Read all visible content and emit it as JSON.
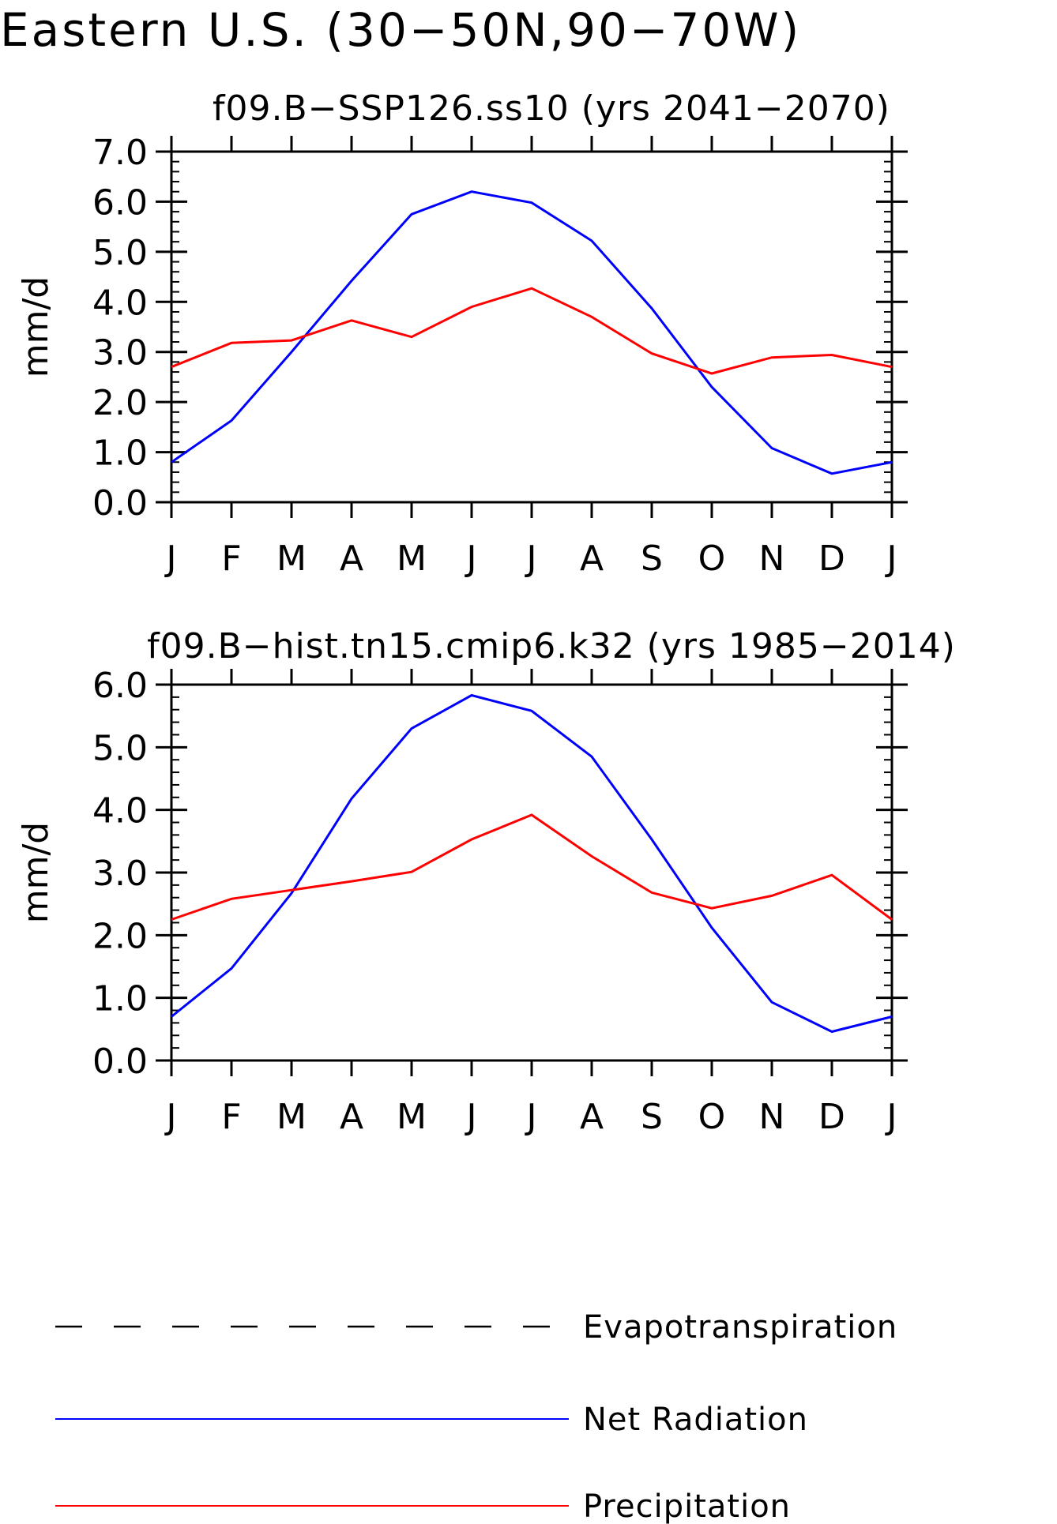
{
  "title": "Eastern U.S. (30−50N,90−70W)",
  "chart_data": [
    {
      "type": "line",
      "title": "f09.B−SSP126.ss10 (yrs 2041−2070)",
      "ylabel": "mm/d",
      "xlabel": "",
      "categories": [
        "J",
        "F",
        "M",
        "A",
        "M",
        "J",
        "J",
        "A",
        "S",
        "O",
        "N",
        "D",
        "J"
      ],
      "ylim": [
        0,
        7
      ],
      "yticks": [
        "0.0",
        "1.0",
        "2.0",
        "3.0",
        "4.0",
        "5.0",
        "6.0",
        "7.0"
      ],
      "series": [
        {
          "name": "Net Radiation",
          "color": "#0000ff",
          "values": [
            0.8,
            1.63,
            3.0,
            4.42,
            5.75,
            6.2,
            5.98,
            5.22,
            3.87,
            2.3,
            1.08,
            0.57,
            0.8
          ]
        },
        {
          "name": "Precipitation",
          "color": "#ff0000",
          "values": [
            2.7,
            3.18,
            3.23,
            3.63,
            3.3,
            3.9,
            4.27,
            3.7,
            2.97,
            2.57,
            2.89,
            2.94,
            2.7
          ]
        }
      ]
    },
    {
      "type": "line",
      "title": "f09.B−hist.tn15.cmip6.k32 (yrs 1985−2014)",
      "ylabel": "mm/d",
      "xlabel": "",
      "categories": [
        "J",
        "F",
        "M",
        "A",
        "M",
        "J",
        "J",
        "A",
        "S",
        "O",
        "N",
        "D",
        "J"
      ],
      "ylim": [
        0,
        6
      ],
      "yticks": [
        "0.0",
        "1.0",
        "2.0",
        "3.0",
        "4.0",
        "5.0",
        "6.0"
      ],
      "series": [
        {
          "name": "Net Radiation",
          "color": "#0000ff",
          "values": [
            0.7,
            1.47,
            2.67,
            4.18,
            5.3,
            5.83,
            5.58,
            4.85,
            3.53,
            2.12,
            0.93,
            0.46,
            0.7
          ]
        },
        {
          "name": "Precipitation",
          "color": "#ff0000",
          "values": [
            2.25,
            2.58,
            2.72,
            2.86,
            3.01,
            3.53,
            3.92,
            3.26,
            2.68,
            2.43,
            2.63,
            2.96,
            2.25
          ]
        }
      ]
    }
  ],
  "legend": [
    {
      "label": "Evapotranspiration",
      "color": "#000000",
      "dashed": true
    },
    {
      "label": "Net Radiation",
      "color": "#0000ff",
      "dashed": false
    },
    {
      "label": "Precipitation",
      "color": "#ff0000",
      "dashed": false
    }
  ]
}
